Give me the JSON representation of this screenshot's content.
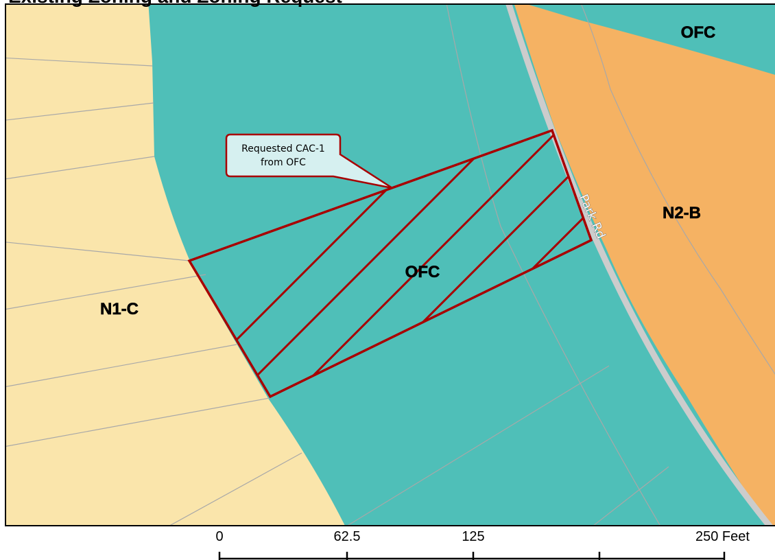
{
  "map": {
    "title": "Existing Zoning and Zoning Request",
    "zones": {
      "n1c": {
        "label": "N1-C",
        "color": "#fae5ab"
      },
      "ofc": {
        "label": "OFC",
        "color": "#4fbfb8"
      },
      "n2b": {
        "label": "N2-B",
        "color": "#f5b263"
      },
      "ofc_top": {
        "label": "OFC"
      },
      "ofc_center": {
        "label": "OFC"
      }
    },
    "road": {
      "label": "Park Rd",
      "color": "#cccccc"
    },
    "request": {
      "callout_line1": "Requested CAC-1",
      "callout_line2": "from OFC",
      "outline_color": "#a80000",
      "callout_fill": "#d6f0f0"
    },
    "scale_bar": {
      "ticks": [
        "0",
        "62.5",
        "125",
        "250 Feet"
      ]
    }
  }
}
